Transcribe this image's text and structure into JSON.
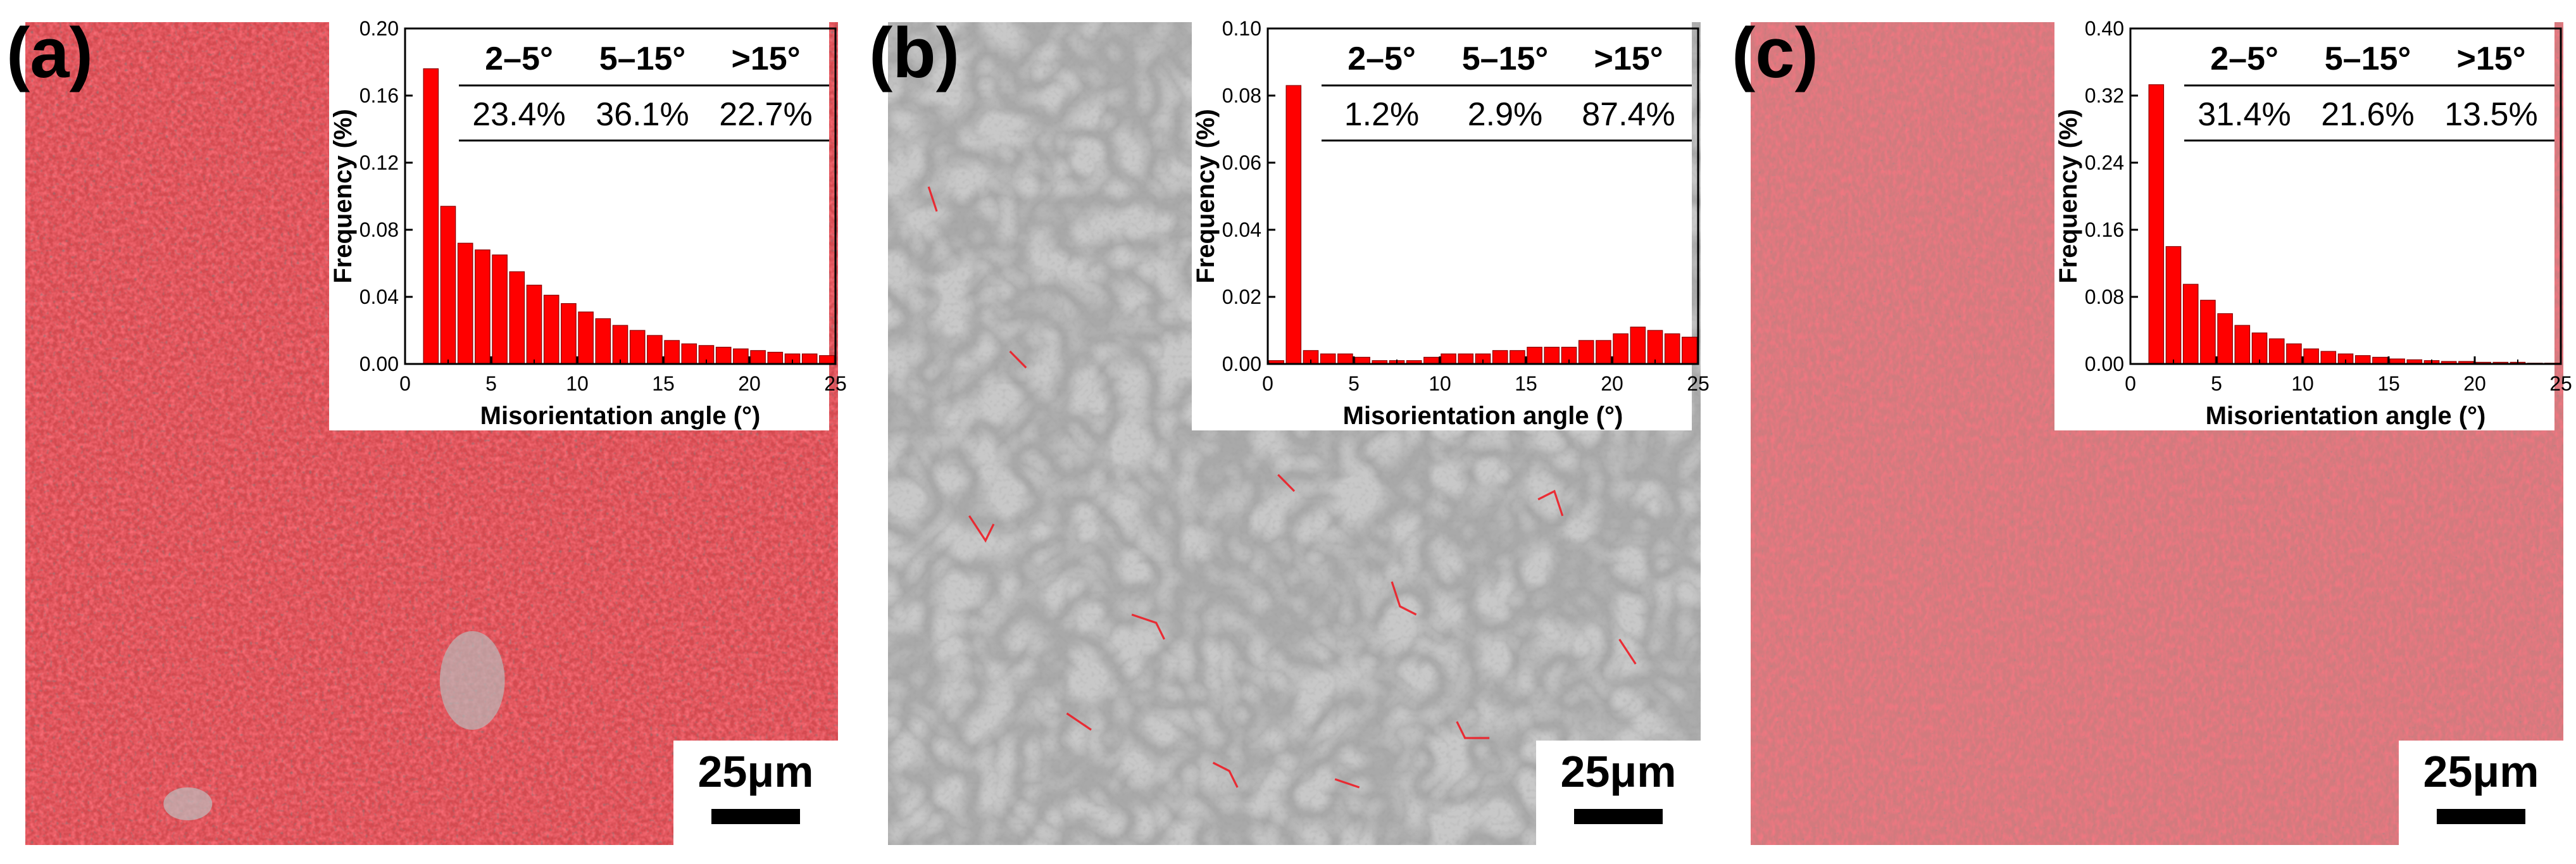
{
  "colors": {
    "boundary_red": "#ee1c25",
    "bar_red": "#ff0000",
    "gray_base": "#c9c9c9",
    "axis": "#000000"
  },
  "scale_bar_label": "25μm",
  "panels": [
    {
      "label": "(a)",
      "table": {
        "headers": [
          "2–5°",
          "5–15°",
          ">15°"
        ],
        "values": [
          "23.4%",
          "36.1%",
          "22.7%"
        ]
      }
    },
    {
      "label": "(b)",
      "table": {
        "headers": [
          "2–5°",
          "5–15°",
          ">15°"
        ],
        "values": [
          "1.2%",
          "2.9%",
          "87.4%"
        ]
      }
    },
    {
      "label": "(c)",
      "table": {
        "headers": [
          "2–5°",
          "5–15°",
          ">15°"
        ],
        "values": [
          "31.4%",
          "21.6%",
          "13.5%"
        ]
      }
    }
  ],
  "chart_data": [
    {
      "type": "bar",
      "xlabel": "Misorientation angle (°)",
      "ylabel": "Frequency (%)",
      "xlim": [
        0,
        25
      ],
      "ylim": [
        0,
        0.2
      ],
      "xticks": [
        "0",
        "5",
        "10",
        "15",
        "20",
        "25"
      ],
      "yticks": [
        "0.00",
        "0.04",
        "0.08",
        "0.12",
        "0.16",
        "0.20"
      ],
      "x": [
        1.5,
        2.5,
        3.5,
        4.5,
        5.5,
        6.5,
        7.5,
        8.5,
        9.5,
        10.5,
        11.5,
        12.5,
        13.5,
        14.5,
        15.5,
        16.5,
        17.5,
        18.5,
        19.5,
        20.5,
        21.5,
        22.5,
        23.5,
        24.5
      ],
      "values": [
        0.176,
        0.094,
        0.072,
        0.068,
        0.065,
        0.055,
        0.047,
        0.041,
        0.036,
        0.031,
        0.027,
        0.023,
        0.02,
        0.017,
        0.014,
        0.012,
        0.011,
        0.01,
        0.009,
        0.008,
        0.007,
        0.006,
        0.006,
        0.005
      ]
    },
    {
      "type": "bar",
      "xlabel": "Misorientation angle (°)",
      "ylabel": "Frequency (%)",
      "xlim": [
        0,
        25
      ],
      "ylim": [
        0,
        0.1
      ],
      "xticks": [
        "0",
        "5",
        "10",
        "15",
        "20",
        "25"
      ],
      "yticks": [
        "0.00",
        "0.02",
        "0.04",
        "0.06",
        "0.08",
        "0.10"
      ],
      "x": [
        0.5,
        1.5,
        2.5,
        3.5,
        4.5,
        5.5,
        6.5,
        7.5,
        8.5,
        9.5,
        10.5,
        11.5,
        12.5,
        13.5,
        14.5,
        15.5,
        16.5,
        17.5,
        18.5,
        19.5,
        20.5,
        21.5,
        22.5,
        23.5,
        24.5
      ],
      "values": [
        0.001,
        0.083,
        0.004,
        0.003,
        0.003,
        0.002,
        0.001,
        0.001,
        0.001,
        0.002,
        0.003,
        0.003,
        0.003,
        0.004,
        0.004,
        0.005,
        0.005,
        0.005,
        0.007,
        0.007,
        0.009,
        0.011,
        0.01,
        0.009,
        0.008
      ]
    },
    {
      "type": "bar",
      "xlabel": "Misorientation angle (°)",
      "ylabel": "Frequency (%)",
      "xlim": [
        0,
        25
      ],
      "ylim": [
        0,
        0.4
      ],
      "xticks": [
        "0",
        "5",
        "10",
        "15",
        "20",
        "25"
      ],
      "yticks": [
        "0.00",
        "0.08",
        "0.16",
        "0.24",
        "0.32",
        "0.40"
      ],
      "x": [
        1.5,
        2.5,
        3.5,
        4.5,
        5.5,
        6.5,
        7.5,
        8.5,
        9.5,
        10.5,
        11.5,
        12.5,
        13.5,
        14.5,
        15.5,
        16.5,
        17.5,
        18.5,
        19.5,
        20.5,
        21.5,
        22.5,
        23.5,
        24.5
      ],
      "values": [
        0.333,
        0.14,
        0.095,
        0.076,
        0.06,
        0.046,
        0.037,
        0.03,
        0.024,
        0.018,
        0.015,
        0.012,
        0.01,
        0.008,
        0.006,
        0.005,
        0.004,
        0.003,
        0.003,
        0.002,
        0.002,
        0.002,
        0.001,
        0.001
      ]
    }
  ]
}
